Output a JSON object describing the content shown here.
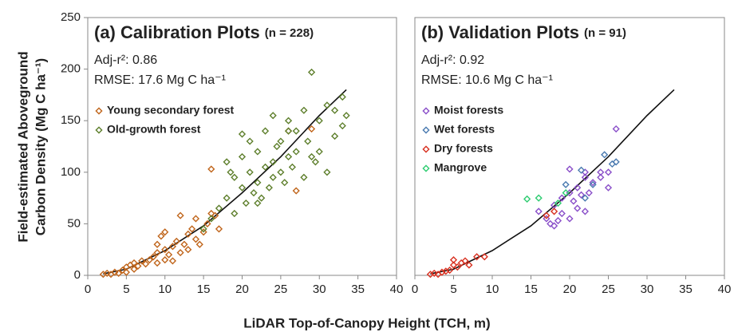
{
  "chart_data": [
    {
      "type": "scatter",
      "title": "(a) Calibration Plots",
      "subtitle": "(n = 228)",
      "annotations": [
        "Adj-r²: 0.86",
        "RMSE: 17.6 Mg C ha⁻¹"
      ],
      "xlim": [
        0,
        40
      ],
      "xticks": [
        0,
        5,
        10,
        15,
        20,
        25,
        30,
        35,
        40
      ],
      "ylim": [
        0,
        250
      ],
      "yticks": [
        0,
        50,
        100,
        150,
        200,
        250
      ],
      "series": [
        {
          "name": "Young secondary forest",
          "color": "#c0651b",
          "x": [
            2,
            2.5,
            3,
            3.5,
            4,
            4.5,
            5,
            5,
            5.5,
            6,
            6,
            6.5,
            7,
            7.5,
            8,
            8.5,
            9,
            9,
            9.5,
            10,
            10,
            10.5,
            11,
            11,
            11.5,
            12,
            12.5,
            13,
            13,
            13.5,
            14,
            14.5,
            15,
            15.5,
            16,
            16,
            16.5,
            17,
            10,
            12,
            9,
            14,
            26,
            27,
            29
          ],
          "values": [
            1,
            2,
            1,
            3,
            2,
            5,
            8,
            3,
            10,
            6,
            12,
            9,
            14,
            11,
            15,
            18,
            22,
            12,
            38,
            25,
            15,
            20,
            28,
            14,
            33,
            22,
            30,
            40,
            25,
            45,
            35,
            30,
            42,
            50,
            60,
            103,
            58,
            45,
            42,
            58,
            30,
            55,
            140,
            82,
            142
          ]
        },
        {
          "name": "Old-growth forest",
          "color": "#5e7f2c",
          "x": [
            15,
            16,
            17,
            18,
            18,
            19,
            19,
            20,
            20,
            20.5,
            21,
            21,
            21.5,
            22,
            22,
            22.5,
            23,
            23,
            23.5,
            24,
            24,
            24.5,
            25,
            25,
            25.5,
            26,
            26,
            26.5,
            27,
            27,
            28,
            28,
            28.5,
            29,
            29,
            30,
            30,
            31,
            31,
            32,
            32,
            33,
            33.5,
            18.5,
            22,
            24,
            29.5,
            20,
            26,
            33
          ],
          "values": [
            45,
            55,
            65,
            75,
            110,
            60,
            95,
            85,
            115,
            70,
            100,
            130,
            80,
            90,
            120,
            75,
            105,
            140,
            85,
            110,
            95,
            125,
            100,
            130,
            90,
            115,
            150,
            105,
            120,
            140,
            95,
            160,
            130,
            115,
            197,
            150,
            120,
            165,
            100,
            160,
            135,
            145,
            155,
            100,
            70,
            155,
            110,
            137,
            140,
            173
          ]
        }
      ],
      "fit_line": {
        "color": "#111111",
        "x": [
          2,
          5,
          10,
          15,
          20,
          25,
          30,
          33.5
        ],
        "values": [
          1.5,
          6,
          24,
          48,
          80,
          115,
          155,
          180
        ]
      }
    },
    {
      "type": "scatter",
      "title": "(b) Validation Plots",
      "subtitle": "(n = 91)",
      "annotations": [
        "Adj-r²: 0.92",
        "RMSE: 10.6 Mg C ha⁻¹"
      ],
      "xlim": [
        0,
        40
      ],
      "xticks": [
        0,
        5,
        10,
        15,
        20,
        25,
        30,
        35,
        40
      ],
      "ylim": [
        0,
        250
      ],
      "series": [
        {
          "name": "Moist forests",
          "color": "#8a4fc9",
          "x": [
            16,
            17,
            17.5,
            18,
            18,
            19,
            19,
            20,
            20,
            20.5,
            21,
            21,
            21.5,
            22,
            22,
            22.5,
            23,
            24,
            24,
            25,
            25,
            26,
            20,
            22,
            18.5
          ],
          "values": [
            62,
            55,
            50,
            48,
            68,
            75,
            60,
            80,
            103,
            72,
            65,
            85,
            78,
            95,
            62,
            80,
            90,
            95,
            100,
            100,
            85,
            142,
            55,
            100,
            53
          ]
        },
        {
          "name": "Wet forests",
          "color": "#4a7ab0",
          "x": [
            19.5,
            21.5,
            22,
            23,
            24.5,
            25.5,
            26
          ],
          "values": [
            88,
            102,
            75,
            88,
            117,
            108,
            110
          ]
        },
        {
          "name": "Dry forests",
          "color": "#d83020",
          "x": [
            2,
            2.5,
            3,
            3.5,
            4,
            4.5,
            5,
            5,
            5.5,
            6,
            6.5,
            7,
            8,
            9,
            17,
            18
          ],
          "values": [
            1,
            2,
            1,
            3,
            4,
            5,
            10,
            15,
            8,
            12,
            14,
            10,
            18,
            18,
            58,
            62
          ]
        },
        {
          "name": "Mangrove",
          "color": "#2ecc71",
          "x": [
            14.5,
            16,
            19.5,
            18.5
          ],
          "values": [
            74,
            75,
            80,
            70
          ]
        }
      ],
      "fit_line": {
        "color": "#111111",
        "x": [
          2,
          5,
          10,
          15,
          20,
          25,
          30,
          33.5
        ],
        "values": [
          1.5,
          6,
          24,
          48,
          80,
          115,
          155,
          180
        ]
      }
    }
  ],
  "y_label": [
    "Field-estimated Aboveground",
    "Carbon Density (Mg C ha⁻¹)"
  ],
  "x_label": "LiDAR Top-of-Canopy Height (TCH, m)"
}
